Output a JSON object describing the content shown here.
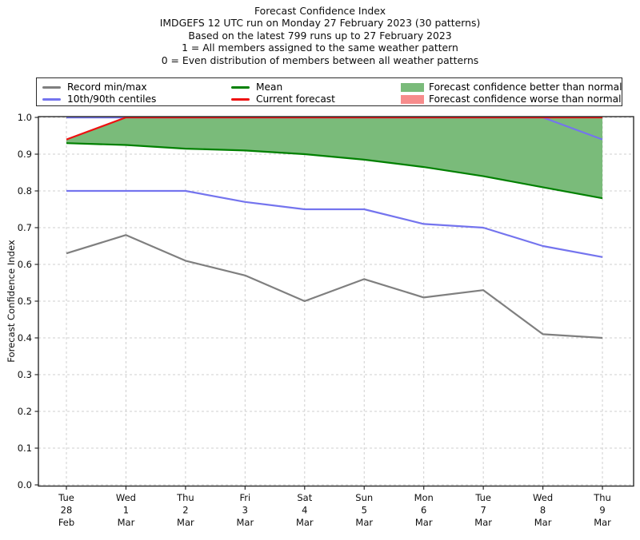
{
  "header": {
    "lines": [
      "Forecast Confidence Index",
      "IMDGEFS 12 UTC run on Monday 27 February 2023 (30 patterns)",
      "Based on the latest 799 runs up to 27 February 2023",
      "1 = All members assigned to the same weather pattern",
      "0 = Even distribution of members between all weather patterns"
    ]
  },
  "legend": {
    "items": [
      {
        "label": "Record min/max",
        "swatch": "line",
        "color": "#7f7f7f"
      },
      {
        "label": "10th/90th centiles",
        "swatch": "line",
        "color": "#7474ee"
      },
      {
        "label": "Mean",
        "swatch": "line",
        "color": "#008000"
      },
      {
        "label": "Current forecast",
        "swatch": "line",
        "color": "#ee1010"
      },
      {
        "label": "Forecast confidence better than normal",
        "swatch": "patch",
        "color": "#7abb7a"
      },
      {
        "label": "Forecast confidence worse than normal",
        "swatch": "patch",
        "color": "#f78c8c"
      }
    ]
  },
  "chart_data": {
    "type": "line",
    "title": "Forecast Confidence Index",
    "ylabel": "Forecast Confidence Index",
    "xlabel": "",
    "ylim": [
      0.0,
      1.0
    ],
    "y_tick_step": 0.1,
    "y_tick_labels": [
      "0.0",
      "0.1",
      "0.2",
      "0.3",
      "0.4",
      "0.5",
      "0.6",
      "0.7",
      "0.8",
      "0.9",
      "1.0"
    ],
    "grid": "dashed, both axes",
    "legend_position": "top boxed, 3 columns",
    "categories": [
      {
        "day": "Tue",
        "date": "28",
        "month": "Feb"
      },
      {
        "day": "Wed",
        "date": "1",
        "month": "Mar"
      },
      {
        "day": "Thu",
        "date": "2",
        "month": "Mar"
      },
      {
        "day": "Fri",
        "date": "3",
        "month": "Mar"
      },
      {
        "day": "Sat",
        "date": "4",
        "month": "Mar"
      },
      {
        "day": "Sun",
        "date": "5",
        "month": "Mar"
      },
      {
        "day": "Mon",
        "date": "6",
        "month": "Mar"
      },
      {
        "day": "Tue",
        "date": "7",
        "month": "Mar"
      },
      {
        "day": "Wed",
        "date": "8",
        "month": "Mar"
      },
      {
        "day": "Thu",
        "date": "9",
        "month": "Mar"
      }
    ],
    "series": [
      {
        "name": "Record max",
        "color": "#7f7f7f",
        "values": [
          1.0,
          1.0,
          1.0,
          1.0,
          1.0,
          1.0,
          1.0,
          1.0,
          1.0,
          1.0
        ]
      },
      {
        "name": "Record min",
        "color": "#7f7f7f",
        "values": [
          0.63,
          0.68,
          0.61,
          0.57,
          0.5,
          0.56,
          0.51,
          0.53,
          0.41,
          0.4
        ]
      },
      {
        "name": "10th centile",
        "color": "#7474ee",
        "values": [
          0.8,
          0.8,
          0.8,
          0.77,
          0.75,
          0.75,
          0.71,
          0.7,
          0.65,
          0.62
        ]
      },
      {
        "name": "90th centile",
        "color": "#7474ee",
        "values": [
          1.0,
          1.0,
          1.0,
          1.0,
          1.0,
          1.0,
          1.0,
          1.0,
          1.0,
          0.94
        ]
      },
      {
        "name": "Mean",
        "color": "#008000",
        "values": [
          0.93,
          0.925,
          0.915,
          0.91,
          0.9,
          0.885,
          0.865,
          0.84,
          0.81,
          0.78
        ]
      },
      {
        "name": "Current forecast",
        "color": "#ee1010",
        "values": [
          0.94,
          1.0,
          1.0,
          1.0,
          1.0,
          1.0,
          1.0,
          1.0,
          1.0,
          1.0
        ]
      }
    ],
    "fill_between": {
      "upper": "Current forecast",
      "lower": "Mean",
      "color": "#7abb7a",
      "meaning": "Forecast confidence better than normal"
    }
  }
}
